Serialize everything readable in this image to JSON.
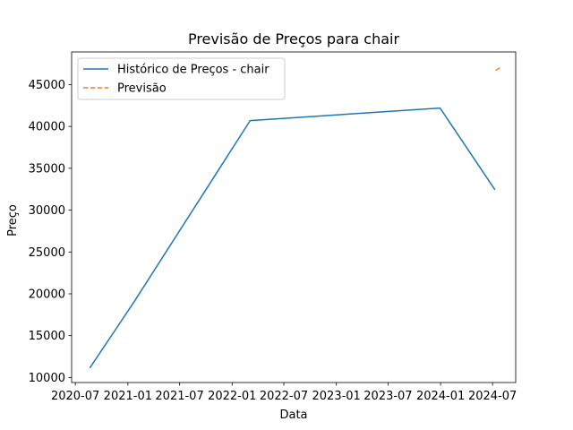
{
  "chart_data": {
    "type": "line",
    "title": "Previsão de Preços para chair",
    "xlabel": "Data",
    "ylabel": "Preço",
    "xlim": [
      "2020-06-18",
      "2024-09-20"
    ],
    "ylim": [
      9400,
      48900
    ],
    "x_ticks": [
      {
        "date": "2020-07-01",
        "label": "2020-07"
      },
      {
        "date": "2021-01-01",
        "label": "2021-01"
      },
      {
        "date": "2021-07-01",
        "label": "2021-07"
      },
      {
        "date": "2022-01-01",
        "label": "2022-01"
      },
      {
        "date": "2022-07-01",
        "label": "2022-07"
      },
      {
        "date": "2023-01-01",
        "label": "2023-01"
      },
      {
        "date": "2023-07-01",
        "label": "2023-07"
      },
      {
        "date": "2024-01-01",
        "label": "2024-01"
      },
      {
        "date": "2024-07-01",
        "label": "2024-07"
      }
    ],
    "y_ticks": [
      10000,
      15000,
      20000,
      25000,
      30000,
      35000,
      40000,
      45000
    ],
    "grid": false,
    "legend_position": "top-left",
    "series": [
      {
        "name": "Histórico de Preços - chair",
        "style": "solid",
        "color": "#1f77b4",
        "points": [
          {
            "x": "2020-08-22",
            "y": 11200
          },
          {
            "x": "2021-01-22",
            "y": 19000
          },
          {
            "x": "2022-03-05",
            "y": 40700
          },
          {
            "x": "2023-12-30",
            "y": 42200
          },
          {
            "x": "2024-07-08",
            "y": 32500
          }
        ]
      },
      {
        "name": "Previsão",
        "style": "dashed",
        "color": "#ff7f0e",
        "points": [
          {
            "x": "2024-07-12",
            "y": 46700
          },
          {
            "x": "2024-07-31",
            "y": 47100
          }
        ]
      }
    ]
  }
}
